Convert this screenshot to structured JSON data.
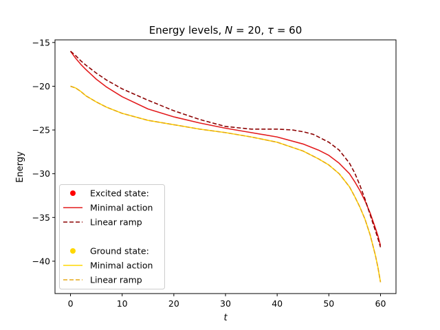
{
  "chart_data": {
    "type": "line",
    "title_prefix": "Energy levels, ",
    "title_n_symbol": "N",
    "title_n_value": " = 20, ",
    "title_tau_symbol": "τ",
    "title_tau_value": " = 60",
    "xlabel": "t",
    "ylabel": "Energy",
    "xlim": [
      -3,
      63
    ],
    "ylim": [
      -43.7,
      -14.7
    ],
    "x_ticks": [
      0,
      10,
      20,
      30,
      40,
      50,
      60
    ],
    "x_tick_labels": [
      "0",
      "10",
      "20",
      "30",
      "40",
      "50",
      "60"
    ],
    "y_ticks": [
      -15,
      -20,
      -25,
      -30,
      -35,
      -40
    ],
    "y_tick_labels": [
      "−15",
      "−20",
      "−25",
      "−30",
      "−35",
      "−40"
    ],
    "legend": {
      "location": "lower-left",
      "excited_header": "Excited state:",
      "ground_header": "Ground state:",
      "minimal_action_label": "Minimal action",
      "linear_ramp_label": "Linear ramp",
      "excited_color": "#ff0000",
      "ground_color": "#ffd700"
    },
    "series": [
      {
        "name": "Excited state: Minimal action",
        "color": "#e31a1c",
        "style": "solid",
        "x": [
          0,
          1,
          2,
          3,
          5,
          7,
          10,
          15,
          20,
          25,
          30,
          35,
          40,
          45,
          48,
          50,
          52,
          54,
          55,
          56,
          57,
          58,
          59,
          59.5,
          60
        ],
        "y": [
          -16.0,
          -16.8,
          -17.5,
          -18.1,
          -19.2,
          -20.1,
          -21.2,
          -22.6,
          -23.5,
          -24.2,
          -24.8,
          -25.3,
          -25.8,
          -26.6,
          -27.3,
          -27.9,
          -28.8,
          -30.0,
          -30.9,
          -31.9,
          -33.1,
          -34.5,
          -36.2,
          -37.1,
          -38.2
        ]
      },
      {
        "name": "Excited state: Linear ramp",
        "color": "#8b0000",
        "style": "dashed",
        "x": [
          0,
          1,
          2,
          3,
          5,
          7,
          10,
          15,
          20,
          25,
          30,
          35,
          40,
          43,
          45,
          47,
          50,
          52,
          54,
          55,
          56,
          57,
          58,
          59,
          59.5,
          60
        ],
        "y": [
          -16.0,
          -16.5,
          -17.1,
          -17.6,
          -18.5,
          -19.3,
          -20.3,
          -21.6,
          -22.8,
          -23.8,
          -24.6,
          -24.9,
          -24.9,
          -25.0,
          -25.2,
          -25.5,
          -26.4,
          -27.3,
          -28.8,
          -29.9,
          -31.3,
          -32.9,
          -34.7,
          -36.5,
          -37.4,
          -38.4
        ]
      },
      {
        "name": "Ground state: Minimal action",
        "color": "#ffd700",
        "style": "solid",
        "x": [
          0,
          1,
          2,
          3,
          5,
          7,
          10,
          15,
          20,
          25,
          30,
          35,
          40,
          45,
          48,
          50,
          52,
          54,
          55,
          56,
          57,
          58,
          59,
          59.5,
          60
        ],
        "y": [
          -20.0,
          -20.2,
          -20.6,
          -21.1,
          -21.8,
          -22.4,
          -23.1,
          -23.9,
          -24.4,
          -24.9,
          -25.3,
          -25.8,
          -26.4,
          -27.4,
          -28.3,
          -29.0,
          -30.0,
          -31.5,
          -32.6,
          -33.8,
          -35.2,
          -37.0,
          -39.3,
          -40.7,
          -42.4
        ]
      },
      {
        "name": "Ground state: Linear ramp",
        "color": "#e6a817",
        "style": "dashed",
        "x": [
          0,
          1,
          2,
          3,
          5,
          7,
          10,
          15,
          20,
          25,
          30,
          35,
          40,
          45,
          48,
          50,
          52,
          54,
          55,
          56,
          57,
          58,
          59,
          59.5,
          60
        ],
        "y": [
          -20.0,
          -20.2,
          -20.6,
          -21.1,
          -21.8,
          -22.4,
          -23.1,
          -23.9,
          -24.4,
          -24.9,
          -25.3,
          -25.8,
          -26.4,
          -27.4,
          -28.3,
          -29.0,
          -30.0,
          -31.5,
          -32.6,
          -33.8,
          -35.2,
          -37.0,
          -39.3,
          -40.7,
          -42.4
        ]
      }
    ]
  }
}
